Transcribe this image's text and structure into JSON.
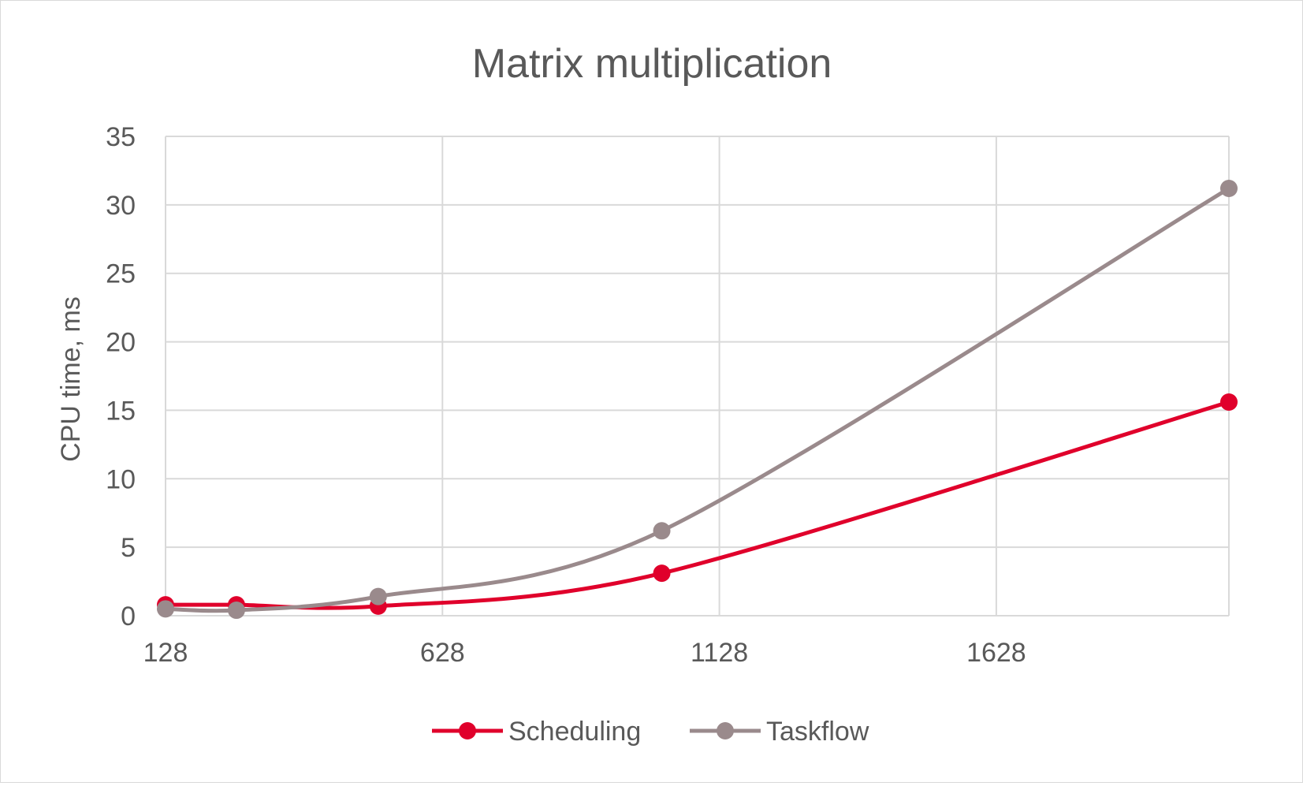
{
  "chart_data": {
    "type": "line",
    "title": "Matrix multiplication",
    "xlabel": "",
    "ylabel": "CPU time, ms",
    "xlim": [
      128,
      2048
    ],
    "ylim": [
      0,
      35
    ],
    "x_ticks": [
      128,
      628,
      1128,
      1628
    ],
    "y_ticks": [
      0,
      5,
      10,
      15,
      20,
      25,
      30,
      35
    ],
    "grid": true,
    "smooth": true,
    "legend": "bottom",
    "series": [
      {
        "name": "Scheduling",
        "color": "#E0002B",
        "x": [
          128,
          256,
          512,
          1024,
          2048
        ],
        "y": [
          0.8,
          0.8,
          0.7,
          3.1,
          15.6
        ]
      },
      {
        "name": "Taskflow",
        "color": "#9A8A8C",
        "x": [
          128,
          256,
          512,
          1024,
          2048
        ],
        "y": [
          0.5,
          0.4,
          1.4,
          6.2,
          31.2
        ]
      }
    ]
  }
}
